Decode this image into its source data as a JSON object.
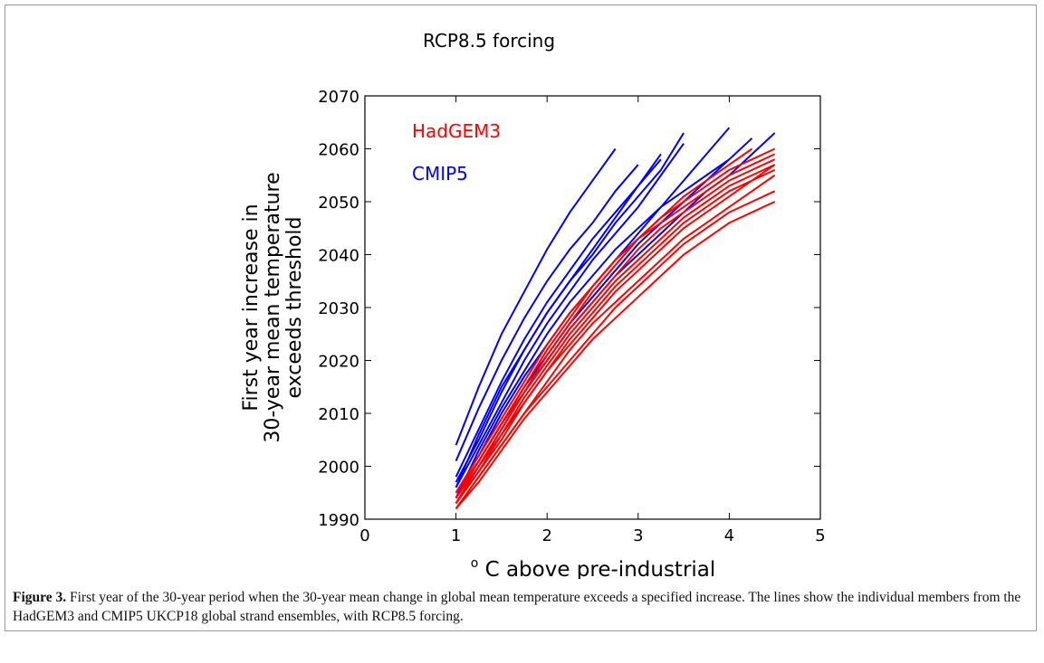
{
  "chart_data": {
    "type": "line",
    "title": "RCP8.5 forcing",
    "xlabel_prefix": "o",
    "xlabel": " C above pre-industrial",
    "ylabel": [
      "First year increase in",
      "30-year mean temperature",
      "exceeds threshold"
    ],
    "xlim": [
      0,
      5
    ],
    "xticks": [
      0,
      1,
      2,
      3,
      4,
      5
    ],
    "ylim": [
      1990,
      2070
    ],
    "yticks": [
      1990,
      2000,
      2010,
      2020,
      2030,
      2040,
      2050,
      2060,
      2070
    ],
    "x": [
      1,
      1.25,
      1.5,
      1.75,
      2,
      2.25,
      2.5,
      2.75,
      3,
      3.25,
      3.5,
      3.75,
      4,
      4.25,
      4.5
    ],
    "series": [
      {
        "name": "HadGEM3",
        "color": "#ff0000",
        "lines": [
          [
            1995,
            2002,
            2009,
            2016,
            2023,
            2029,
            2034,
            2039,
            2043,
            2047,
            2050,
            2053,
            2056,
            2058,
            2060
          ],
          [
            1994,
            2001,
            2008,
            2014,
            2020,
            2026,
            2031,
            2036,
            2041,
            2045,
            2048,
            2051,
            2054,
            2056,
            2058
          ],
          [
            1993,
            2000,
            2006,
            2013,
            2019,
            2025,
            2030,
            2035,
            2039,
            2043,
            2047,
            2050,
            2053,
            2055,
            2057
          ],
          [
            1993,
            1999,
            2005,
            2012,
            2018,
            2023,
            2028,
            2033,
            2037,
            2041,
            2045,
            2048,
            2051,
            2054,
            2056
          ],
          [
            1992,
            1998,
            2004,
            2010,
            2016,
            2022,
            2027,
            2031,
            2035,
            2039,
            2043,
            2046,
            2049,
            2052,
            2055
          ],
          [
            1992,
            1998,
            2004,
            2010,
            2015,
            2020,
            2025,
            2030,
            2034,
            2038,
            2042,
            2045,
            2048,
            2050,
            2052
          ],
          [
            1992,
            1997,
            2003,
            2009,
            2014,
            2019,
            2024,
            2028,
            2032,
            2036,
            2040,
            2043,
            2046,
            2048,
            2050
          ],
          [
            1994,
            2000,
            2007,
            2014,
            2021,
            2027,
            2033,
            2038,
            2043,
            2047,
            2051,
            2054,
            2057,
            2060,
            null
          ],
          [
            1995,
            2001,
            2008,
            2015,
            2022,
            2028,
            2034,
            2039,
            2043,
            2046,
            2049,
            2052,
            2055,
            2057,
            2059
          ],
          [
            1993,
            1999,
            2006,
            2012,
            2018,
            2024,
            2029,
            2034,
            2038,
            2042,
            2046,
            2049,
            2052,
            2054,
            2057
          ]
        ]
      },
      {
        "name": "CMIP5",
        "color": "#0000ff",
        "lines": [
          [
            2004,
            2015,
            2025,
            2033,
            2041,
            2048,
            2054,
            2060,
            null,
            null,
            null,
            null,
            null,
            null,
            null
          ],
          [
            2001,
            2011,
            2020,
            2028,
            2035,
            2041,
            2046,
            2052,
            2057,
            null,
            null,
            null,
            null,
            null,
            null
          ],
          [
            1998,
            2007,
            2016,
            2024,
            2031,
            2037,
            2043,
            2048,
            2053,
            2059,
            null,
            null,
            null,
            null,
            null
          ],
          [
            1996,
            2006,
            2015,
            2022,
            2029,
            2035,
            2040,
            2046,
            2051,
            2056,
            2063,
            null,
            null,
            null,
            null
          ],
          [
            1996,
            2004,
            2012,
            2020,
            2027,
            2033,
            2039,
            2044,
            2049,
            2055,
            2061,
            null,
            null,
            null,
            null
          ],
          [
            1995,
            2002,
            2010,
            2017,
            2023,
            2029,
            2034,
            2039,
            2044,
            2049,
            2054,
            2059,
            2064,
            null,
            null
          ],
          [
            1994,
            2001,
            2008,
            2015,
            2021,
            2027,
            2032,
            2037,
            2042,
            2046,
            2050,
            2054,
            2058,
            2062,
            null
          ],
          [
            1993,
            2000,
            2007,
            2014,
            2020,
            2026,
            2031,
            2036,
            2040,
            2044,
            2048,
            2052,
            2055,
            2059,
            2063
          ],
          [
            1997,
            2005,
            2014,
            2022,
            2029,
            2035,
            2041,
            2047,
            2053,
            2058,
            null,
            null,
            null,
            null,
            null
          ],
          [
            1994,
            2003,
            2011,
            2018,
            2025,
            2031,
            2036,
            2041,
            2045,
            2049,
            2052,
            2055,
            2058,
            null,
            null
          ]
        ]
      }
    ]
  },
  "caption": {
    "label": "Figure 3.",
    "text": " First year of the 30-year period when the 30-year mean change in global mean temperature exceeds a specified increase. The lines show the individual members from the HadGEM3 and CMIP5 UKCP18 global strand ensembles, with RCP8.5 forcing."
  }
}
